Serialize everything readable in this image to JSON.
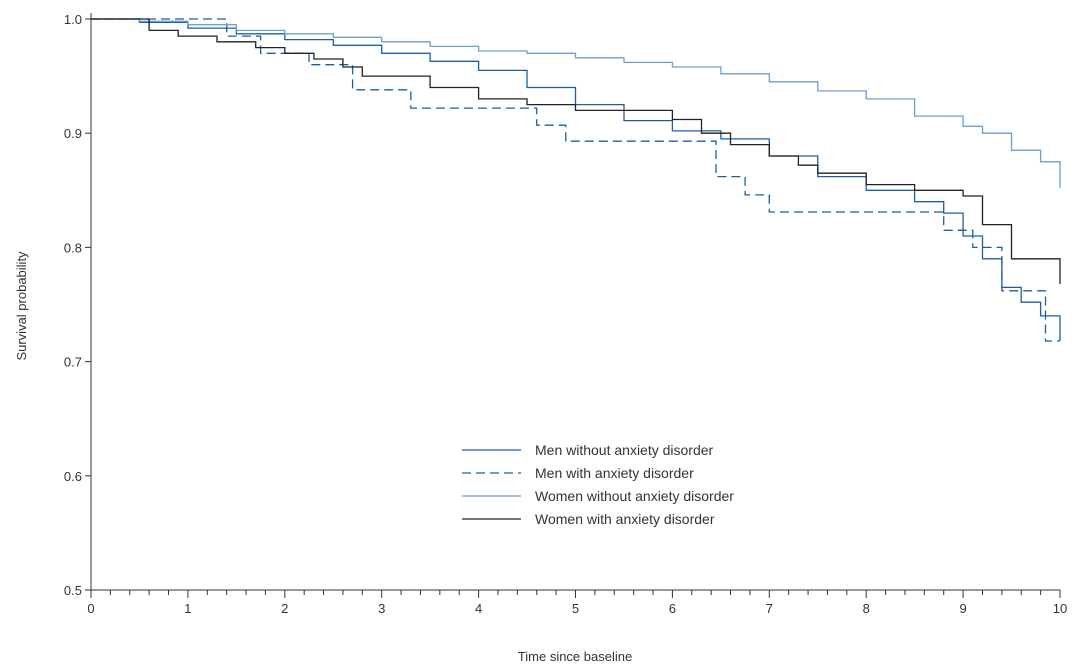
{
  "chart_data": {
    "type": "line",
    "title": "",
    "xlabel": "Time since baseline",
    "ylabel": "Survival probability",
    "xlim": [
      0,
      10
    ],
    "ylim": [
      0.5,
      1.0
    ],
    "x_ticks": [
      "0",
      "1",
      "2",
      "3",
      "4",
      "5",
      "6",
      "7",
      "8",
      "9",
      "10"
    ],
    "y_ticks": [
      "0.5",
      "0.6",
      "0.7",
      "0.8",
      "0.9",
      "1.0"
    ],
    "grid": false,
    "legend_position": "center-bottom",
    "series": [
      {
        "name": "Men without anxiety disorder",
        "color": "#1f5fa0",
        "dash": "solid",
        "x": [
          0,
          0.5,
          1.0,
          1.5,
          2.0,
          2.5,
          3.0,
          3.5,
          4.0,
          4.5,
          5.0,
          5.5,
          6.0,
          6.5,
          7.0,
          7.5,
          8.0,
          8.5,
          8.8,
          9.0,
          9.2,
          9.4,
          9.6,
          9.8,
          10.0
        ],
        "y": [
          1.0,
          0.997,
          0.992,
          0.987,
          0.982,
          0.977,
          0.97,
          0.963,
          0.955,
          0.94,
          0.925,
          0.911,
          0.902,
          0.895,
          0.88,
          0.862,
          0.85,
          0.84,
          0.83,
          0.81,
          0.79,
          0.765,
          0.752,
          0.74,
          0.718
        ]
      },
      {
        "name": "Men with anxiety disorder",
        "color": "#1f5fa0",
        "dash": "dashed",
        "x": [
          0,
          1.4,
          1.75,
          2.25,
          2.7,
          3.3,
          4.6,
          4.9,
          6.45,
          6.75,
          7.0,
          8.8,
          9.1,
          9.4,
          9.85,
          10.0
        ],
        "y": [
          1.0,
          0.985,
          0.97,
          0.96,
          0.938,
          0.922,
          0.907,
          0.893,
          0.862,
          0.846,
          0.831,
          0.815,
          0.8,
          0.762,
          0.718,
          0.718
        ]
      },
      {
        "name": "Women without anxiety disorder",
        "color": "#6d9fcf",
        "dash": "solid",
        "x": [
          0,
          0.5,
          1.0,
          1.5,
          2.0,
          2.5,
          3.0,
          3.5,
          4.0,
          4.5,
          5.0,
          5.5,
          6.0,
          6.5,
          7.0,
          7.5,
          8.0,
          8.5,
          9.0,
          9.2,
          9.5,
          9.8,
          10.0
        ],
        "y": [
          1.0,
          0.998,
          0.995,
          0.99,
          0.987,
          0.984,
          0.98,
          0.976,
          0.972,
          0.97,
          0.966,
          0.962,
          0.958,
          0.952,
          0.945,
          0.937,
          0.93,
          0.915,
          0.906,
          0.9,
          0.885,
          0.875,
          0.852
        ]
      },
      {
        "name": "Women with anxiety disorder",
        "color": "#222222",
        "dash": "solid",
        "x": [
          0,
          0.6,
          0.9,
          1.3,
          1.7,
          2.0,
          2.3,
          2.6,
          2.8,
          3.5,
          4.0,
          4.5,
          5.0,
          6.0,
          6.3,
          6.6,
          7.0,
          7.3,
          7.5,
          8.0,
          8.5,
          9.0,
          9.2,
          9.5,
          10.0
        ],
        "y": [
          1.0,
          0.99,
          0.985,
          0.98,
          0.975,
          0.97,
          0.965,
          0.958,
          0.95,
          0.94,
          0.93,
          0.925,
          0.92,
          0.912,
          0.9,
          0.89,
          0.88,
          0.872,
          0.865,
          0.855,
          0.85,
          0.845,
          0.82,
          0.79,
          0.768
        ]
      }
    ]
  }
}
